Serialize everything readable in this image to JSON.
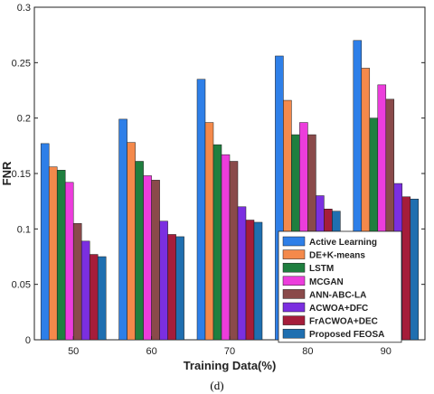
{
  "chart_data": {
    "type": "bar",
    "xlabel": "Training Data(%)",
    "ylabel": "FNR",
    "ylim": [
      0,
      0.3
    ],
    "yticks": [
      0,
      0.05,
      0.1,
      0.15,
      0.2,
      0.25,
      0.3
    ],
    "ytick_labels": [
      "0",
      "0.05",
      "0.1",
      "0.15",
      "0.2",
      "0.25",
      "0.3"
    ],
    "categories": [
      "50",
      "60",
      "70",
      "80",
      "90"
    ],
    "legend_position": "bottom-right",
    "grid": false,
    "series": [
      {
        "name": "Active Learning",
        "color": "#2e7fe8",
        "values": [
          0.177,
          0.199,
          0.235,
          0.256,
          0.27
        ]
      },
      {
        "name": "DE+K-means",
        "color": "#f4894b",
        "values": [
          0.156,
          0.178,
          0.196,
          0.216,
          0.245
        ]
      },
      {
        "name": "LSTM",
        "color": "#1f7f3f",
        "values": [
          0.153,
          0.161,
          0.176,
          0.185,
          0.2
        ]
      },
      {
        "name": "MCGAN",
        "color": "#ec3ddc",
        "values": [
          0.142,
          0.148,
          0.167,
          0.196,
          0.23
        ]
      },
      {
        "name": "ANN-ABC-LA",
        "color": "#8a4a4a",
        "values": [
          0.105,
          0.144,
          0.161,
          0.185,
          0.217
        ]
      },
      {
        "name": "ACWOA+DFC",
        "color": "#7b2fe0",
        "values": [
          0.089,
          0.107,
          0.12,
          0.13,
          0.141
        ]
      },
      {
        "name": "FrACWOA+DEC",
        "color": "#a51d3a",
        "values": [
          0.077,
          0.095,
          0.108,
          0.118,
          0.129
        ]
      },
      {
        "name": "Proposed FEOSA",
        "color": "#1f6fb0",
        "values": [
          0.075,
          0.093,
          0.106,
          0.116,
          0.127
        ]
      }
    ]
  },
  "caption": "(d)"
}
